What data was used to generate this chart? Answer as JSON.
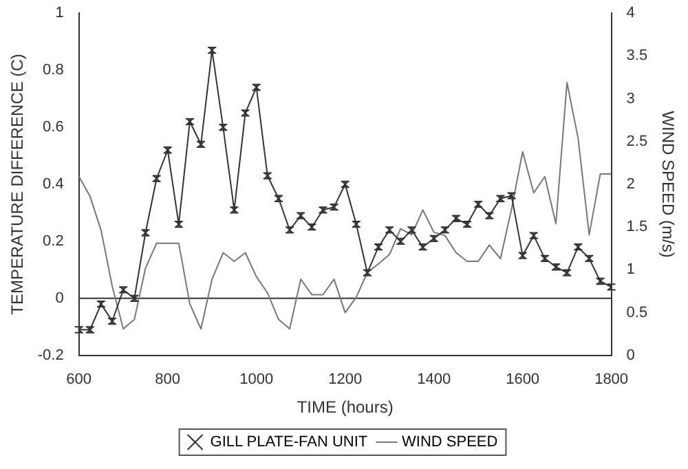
{
  "chart_data": {
    "type": "line",
    "xlabel": "TIME (hours)",
    "ylabel": "TEMPERATURE DIFFERENCE (C)",
    "y2label": "WIND SPEED (m/s)",
    "x": [
      600,
      625,
      650,
      675,
      700,
      725,
      750,
      775,
      800,
      825,
      850,
      875,
      900,
      925,
      950,
      975,
      1000,
      1025,
      1050,
      1075,
      1100,
      1125,
      1150,
      1175,
      1200,
      1225,
      1250,
      1275,
      1300,
      1325,
      1350,
      1375,
      1400,
      1425,
      1450,
      1475,
      1500,
      1525,
      1550,
      1575,
      1600,
      1625,
      1650,
      1675,
      1700,
      1725,
      1750,
      1775,
      1800
    ],
    "series": [
      {
        "name": "GILL PLATE-FAN UNIT",
        "color": "#333333",
        "marker": "cross",
        "values": [
          -0.11,
          -0.11,
          -0.02,
          -0.08,
          0.03,
          0,
          0.23,
          0.42,
          0.52,
          0.26,
          0.62,
          0.54,
          0.87,
          0.6,
          0.31,
          0.65,
          0.74,
          0.43,
          0.35,
          0.24,
          0.29,
          0.25,
          0.31,
          0.32,
          0.4,
          0.26,
          0.09,
          0.18,
          0.24,
          0.2,
          0.24,
          0.18,
          0.21,
          0.24,
          0.28,
          0.26,
          0.33,
          0.29,
          0.35,
          0.36,
          0.15,
          0.22,
          0.14,
          0.11,
          0.09,
          0.18,
          0.14,
          0.06,
          0.04
        ],
        "errors": [
          0.01,
          0.01,
          0.01,
          0.01,
          0.01,
          0.01,
          0.01,
          0.01,
          0.01,
          0.01,
          0.01,
          0.01,
          0.01,
          0.01,
          0.01,
          0.01,
          0.01,
          0.01,
          0.01,
          0.01,
          0.01,
          0.01,
          0.01,
          0.01,
          0.01,
          0.01,
          0.01,
          0.01,
          0.01,
          0.01,
          0.01,
          0.01,
          0.01,
          0.01,
          0.01,
          0.01,
          0.01,
          0.01,
          0.01,
          0.01,
          0.01,
          0.01,
          0.01,
          0.01,
          0.01,
          0.01,
          0.01,
          0.01,
          0.01
        ]
      },
      {
        "name": "WIND SPEED",
        "color": "#777777",
        "marker": "none",
        "axis": "y2",
        "values": [
          2.09,
          1.86,
          1.46,
          0.81,
          0.31,
          0.42,
          1.02,
          1.31,
          1.31,
          1.31,
          0.6,
          0.31,
          0.89,
          1.2,
          1.1,
          1.2,
          0.92,
          0.73,
          0.42,
          0.31,
          0.89,
          0.71,
          0.71,
          0.89,
          0.5,
          0.68,
          0.97,
          1.07,
          1.18,
          1.48,
          1.41,
          1.7,
          1.44,
          1.4,
          1.2,
          1.1,
          1.1,
          1.29,
          1.13,
          1.71,
          2.38,
          1.9,
          2.09,
          1.54,
          3.19,
          2.54,
          1.41,
          2.12,
          2.12
        ]
      }
    ],
    "xlim": [
      600,
      1800
    ],
    "xticks": [
      600,
      800,
      1000,
      1200,
      1400,
      1600,
      1800
    ],
    "ylim": [
      -0.2,
      1
    ],
    "yticks": [
      -0.2,
      0,
      0.2,
      0.4,
      0.6,
      0.8,
      1
    ],
    "y2lim": [
      0,
      4
    ],
    "y2ticks": [
      0,
      0.5,
      1,
      1.5,
      2,
      2.5,
      3,
      3.5,
      4
    ],
    "ref_lines": [
      {
        "axis": "y",
        "value": 0,
        "color": "#333333"
      }
    ],
    "grid": false,
    "legend": "bottom",
    "line_style": "solid"
  }
}
